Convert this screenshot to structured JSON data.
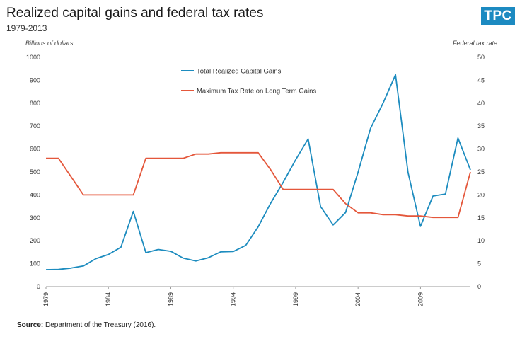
{
  "header": {
    "title": "Realized capital gains and federal tax rates",
    "subtitle": "1979-2013",
    "logo": "TPC"
  },
  "footer": {
    "source_label": "Source:",
    "source_text": "Department of the Treasury (2016)."
  },
  "chart_data": {
    "type": "line",
    "ylabel": "Billions of dollars",
    "y2label": "Federal tax rate",
    "ylim": [
      0,
      1000
    ],
    "y2lim": [
      0,
      50
    ],
    "xlim": [
      1979,
      2013
    ],
    "yticks": [
      0,
      100,
      200,
      300,
      400,
      500,
      600,
      700,
      800,
      900,
      1000
    ],
    "y2ticks": [
      0,
      5,
      10,
      15,
      20,
      25,
      30,
      35,
      40,
      45,
      50
    ],
    "xticks": [
      1979,
      1984,
      1989,
      1994,
      1999,
      2004,
      2009
    ],
    "grid": false,
    "legend": "top-center",
    "x": [
      1979,
      1980,
      1981,
      1982,
      1983,
      1984,
      1985,
      1986,
      1987,
      1988,
      1989,
      1990,
      1991,
      1992,
      1993,
      1994,
      1995,
      1996,
      1997,
      1998,
      1999,
      2000,
      2001,
      2002,
      2003,
      2004,
      2005,
      2006,
      2007,
      2008,
      2009,
      2010,
      2011,
      2012,
      2013
    ],
    "series": [
      {
        "name": "Total Realized Capital Gains",
        "axis": "left",
        "color": "#1d8cbf",
        "values": [
          74,
          75,
          81,
          90,
          122,
          140,
          172,
          328,
          148,
          162,
          154,
          124,
          112,
          126,
          152,
          153,
          180,
          261,
          364,
          455,
          553,
          644,
          349,
          269,
          323,
          499,
          690,
          800,
          924,
          498,
          263,
          395,
          404,
          648,
          509
        ]
      },
      {
        "name": "Maximum Tax Rate on Long Term Gains",
        "axis": "right",
        "color": "#e4573b",
        "values": [
          28,
          28,
          24,
          20,
          20,
          20,
          20,
          20,
          28,
          28,
          28,
          28,
          28.9,
          28.9,
          29.2,
          29.2,
          29.2,
          29.2,
          25.5,
          21.2,
          21.2,
          21.2,
          21.2,
          21.2,
          18.1,
          16.1,
          16.1,
          15.7,
          15.7,
          15.4,
          15.4,
          15.1,
          15.1,
          15.1,
          25
        ]
      }
    ]
  }
}
